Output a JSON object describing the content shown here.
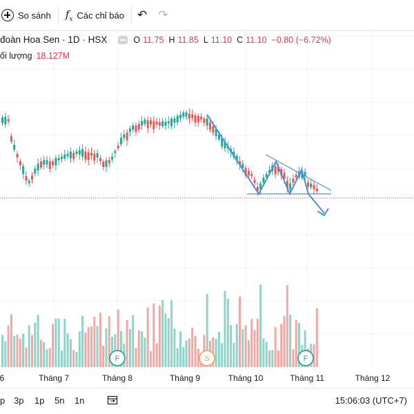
{
  "toolbar": {
    "compare_label": "So sánh",
    "indicators_label": "Các chỉ báo",
    "compare_icon": "plus-circle-icon",
    "indicators_icon": "fx-icon",
    "undo_icon": "undo-icon",
    "redo_icon": "redo-icon"
  },
  "legend": {
    "title": "đoàn Hoa Sen · 1D · HSX",
    "open_label": "O",
    "open": "11.75",
    "high_label": "H",
    "high": "11.85",
    "low_label": "L",
    "low": "11.10",
    "close_label": "C",
    "close": "11.10",
    "change": "−0.80 (−6.72%)",
    "volume_label": "ối lượng",
    "volume": "18.127M"
  },
  "colors": {
    "up": "#26a69a",
    "down": "#ef5350",
    "vol_up": "#8fd3c9",
    "vol_down": "#f4a6a3",
    "drawing": "#4a90d9"
  },
  "time_axis": [
    "6",
    "Tháng 7",
    "Tháng 8",
    "Tháng 9",
    "Tháng 10",
    "Tháng 11",
    "Tháng 12"
  ],
  "markers": [
    {
      "label": "F",
      "color": "#26a69a"
    },
    {
      "label": "S",
      "color": "#f6a06a"
    },
    {
      "label": "F",
      "color": "#26a69a"
    }
  ],
  "bottom": {
    "ranges": [
      "p",
      "3p",
      "1p",
      "5n",
      "1n"
    ],
    "range_icon": "calendar-range-icon",
    "clock": "15:06:03 (UTC+7)"
  }
}
